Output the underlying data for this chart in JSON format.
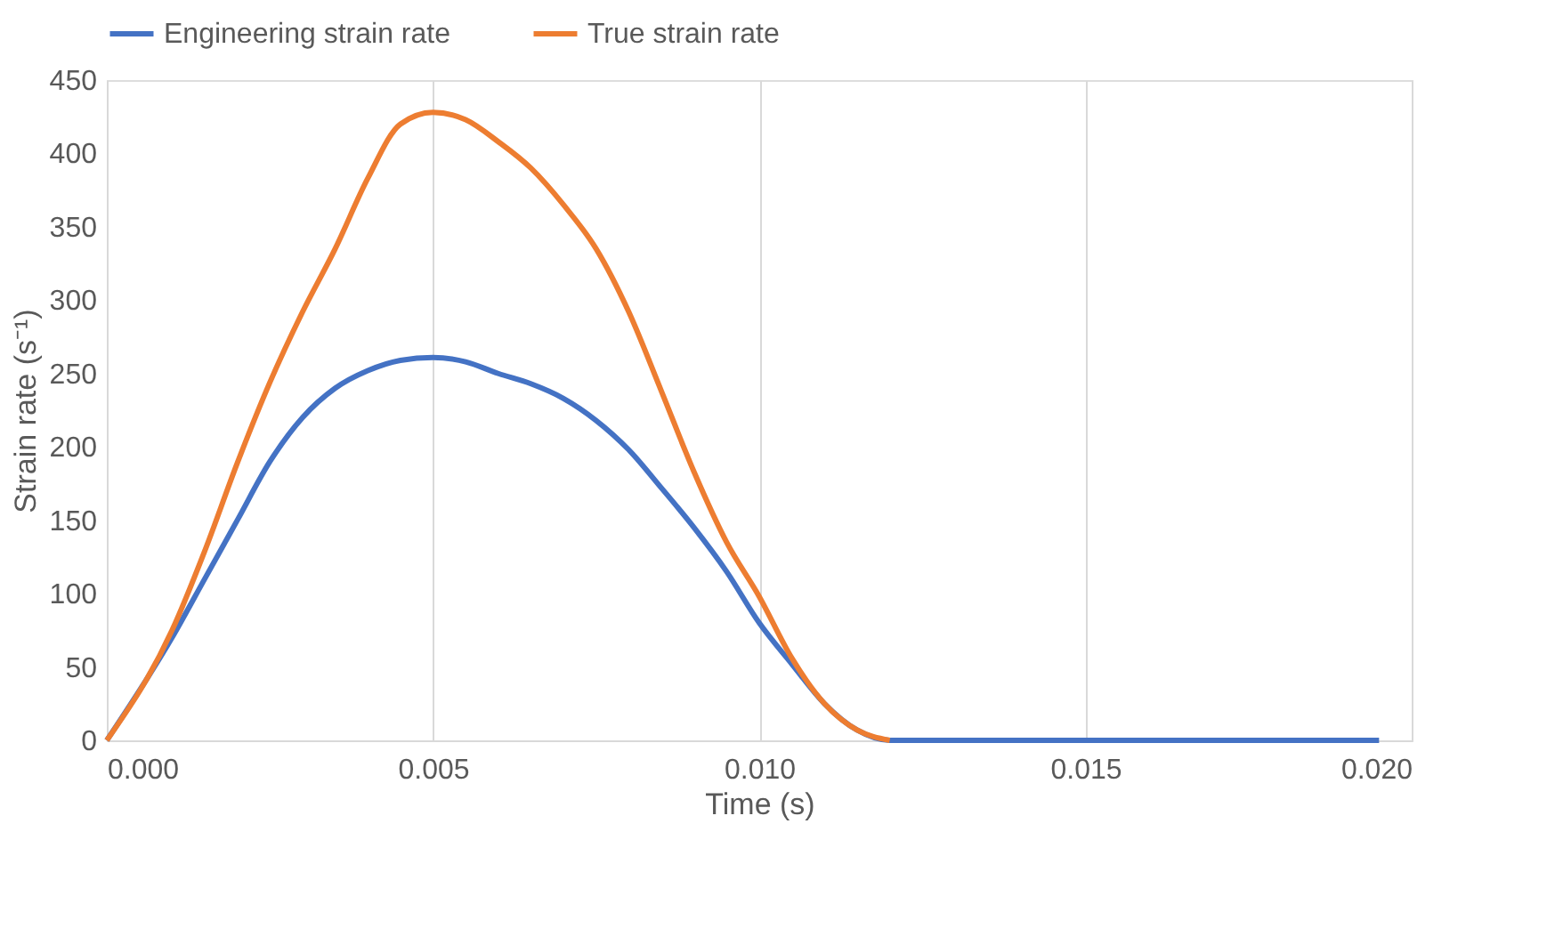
{
  "chart_data": {
    "type": "line",
    "xlabel": "Time (s)",
    "ylabel": "Strain rate (s⁻¹)",
    "xlim": [
      0,
      0.02
    ],
    "xticks": [
      {
        "value": 0,
        "label": "0.000"
      },
      {
        "value": 0.005,
        "label": "0.005"
      },
      {
        "value": 0.01,
        "label": "0.010"
      },
      {
        "value": 0.015,
        "label": "0.015"
      },
      {
        "value": 0.02,
        "label": "0.020"
      }
    ],
    "ylim": [
      0,
      450
    ],
    "yticks": [
      0,
      50,
      100,
      150,
      200,
      250,
      300,
      350,
      400,
      450
    ],
    "x": [
      0,
      0.001,
      0.0015,
      0.002,
      0.0025,
      0.003,
      0.0035,
      0.004,
      0.0045,
      0.005,
      0.0055,
      0.006,
      0.0065,
      0.007,
      0.0075,
      0.008,
      0.0085,
      0.009,
      0.0095,
      0.01,
      0.0105,
      0.011,
      0.0115,
      0.012,
      0.0195
    ],
    "series": [
      {
        "name": "Engineering strain rate",
        "color": "#4472c4",
        "values": [
          0,
          70,
          110,
          150,
          190,
          220,
          240,
          252,
          259,
          261,
          258,
          250,
          243,
          233,
          218,
          198,
          172,
          145,
          115,
          80,
          52,
          25,
          7,
          0,
          0
        ]
      },
      {
        "name": "True strain rate",
        "color": "#ed7d31",
        "values": [
          0,
          75,
          129,
          189,
          244,
          292,
          335,
          383,
          420,
          428,
          423,
          408,
          390,
          365,
          335,
          292,
          238,
          183,
          135,
          98,
          56,
          25,
          7,
          0,
          null
        ]
      }
    ],
    "grid": "x",
    "legend": "top",
    "marker": "none",
    "line_style": "solid"
  }
}
